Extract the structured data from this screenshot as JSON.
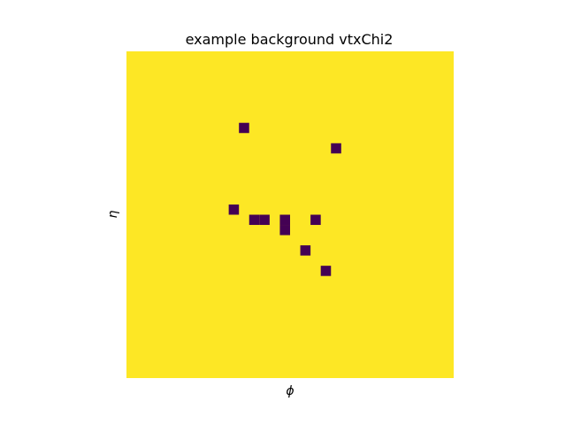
{
  "chart_data": {
    "type": "heatmap",
    "title": "example background vtxChi2",
    "xlabel": "ϕ",
    "ylabel": "η",
    "grid": false,
    "x_ticks": [],
    "y_ticks": [],
    "colors": {
      "background_value": "#fde725",
      "hit_value": "#440154"
    },
    "n_cols": 32,
    "n_rows": 32,
    "cells": [
      {
        "col": 11,
        "row": 7
      },
      {
        "col": 20,
        "row": 9
      },
      {
        "col": 10,
        "row": 15
      },
      {
        "col": 12,
        "row": 16
      },
      {
        "col": 13,
        "row": 16
      },
      {
        "col": 15,
        "row": 16
      },
      {
        "col": 15,
        "row": 17
      },
      {
        "col": 18,
        "row": 16
      },
      {
        "col": 17,
        "row": 19
      },
      {
        "col": 19,
        "row": 21
      }
    ]
  }
}
